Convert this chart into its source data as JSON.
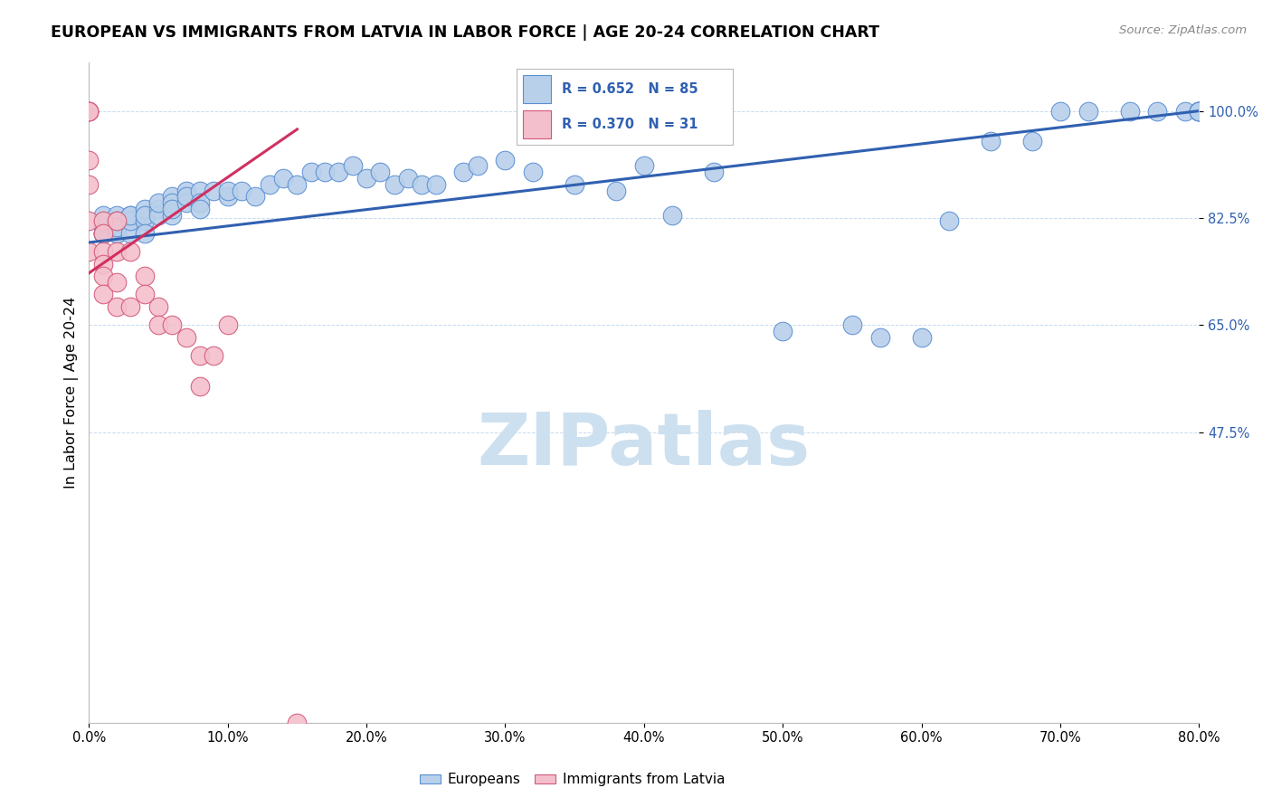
{
  "title": "EUROPEAN VS IMMIGRANTS FROM LATVIA IN LABOR FORCE | AGE 20-24 CORRELATION CHART",
  "source": "Source: ZipAtlas.com",
  "ylabel": "In Labor Force | Age 20-24",
  "xmin": 0.0,
  "xmax": 0.8,
  "ymin": 0.0,
  "ymax": 1.08,
  "yticks": [
    0.475,
    0.65,
    0.825,
    1.0
  ],
  "ytick_labels": [
    "47.5%",
    "65.0%",
    "82.5%",
    "100.0%"
  ],
  "xtick_labels": [
    "0.0%",
    "10.0%",
    "20.0%",
    "30.0%",
    "40.0%",
    "50.0%",
    "60.0%",
    "70.0%",
    "80.0%"
  ],
  "xticks": [
    0.0,
    0.1,
    0.2,
    0.3,
    0.4,
    0.5,
    0.6,
    0.7,
    0.8
  ],
  "legend_r_blue": "R = 0.652",
  "legend_n_blue": "N = 85",
  "legend_r_pink": "R = 0.370",
  "legend_n_pink": "N = 31",
  "blue_color": "#b8d0ea",
  "blue_edge_color": "#5b8fd4",
  "pink_color": "#f4bfcc",
  "pink_edge_color": "#d45878",
  "blue_line_color": "#3060b0",
  "pink_line_color": "#d03060",
  "watermark_color": "#cde0f0",
  "blue_x": [
    0.01,
    0.01,
    0.01,
    0.01,
    0.01,
    0.01,
    0.01,
    0.02,
    0.02,
    0.02,
    0.02,
    0.02,
    0.02,
    0.02,
    0.02,
    0.02,
    0.02,
    0.02,
    0.03,
    0.03,
    0.03,
    0.03,
    0.03,
    0.04,
    0.04,
    0.04,
    0.04,
    0.04,
    0.05,
    0.05,
    0.05,
    0.06,
    0.06,
    0.06,
    0.06,
    0.07,
    0.07,
    0.07,
    0.08,
    0.08,
    0.08,
    0.09,
    0.1,
    0.1,
    0.11,
    0.12,
    0.13,
    0.14,
    0.15,
    0.16,
    0.17,
    0.18,
    0.19,
    0.2,
    0.21,
    0.22,
    0.23,
    0.24,
    0.25,
    0.27,
    0.28,
    0.3,
    0.32,
    0.35,
    0.38,
    0.4,
    0.42,
    0.45,
    0.5,
    0.55,
    0.57,
    0.6,
    0.62,
    0.65,
    0.68,
    0.7,
    0.72,
    0.75,
    0.77,
    0.79,
    0.8,
    0.8,
    0.8,
    0.8,
    0.8
  ],
  "blue_y": [
    0.8,
    0.81,
    0.82,
    0.8,
    0.82,
    0.83,
    0.8,
    0.81,
    0.82,
    0.8,
    0.82,
    0.81,
    0.82,
    0.81,
    0.8,
    0.83,
    0.82,
    0.81,
    0.82,
    0.83,
    0.8,
    0.82,
    0.83,
    0.83,
    0.82,
    0.84,
    0.83,
    0.8,
    0.84,
    0.83,
    0.85,
    0.86,
    0.83,
    0.85,
    0.84,
    0.87,
    0.85,
    0.86,
    0.87,
    0.85,
    0.84,
    0.87,
    0.86,
    0.87,
    0.87,
    0.86,
    0.88,
    0.89,
    0.88,
    0.9,
    0.9,
    0.9,
    0.91,
    0.89,
    0.9,
    0.88,
    0.89,
    0.88,
    0.88,
    0.9,
    0.91,
    0.92,
    0.9,
    0.88,
    0.87,
    0.91,
    0.83,
    0.9,
    0.64,
    0.65,
    0.63,
    0.63,
    0.82,
    0.95,
    0.95,
    1.0,
    1.0,
    1.0,
    1.0,
    1.0,
    1.0,
    1.0,
    1.0,
    1.0,
    1.0
  ],
  "pink_x": [
    0.0,
    0.0,
    0.0,
    0.0,
    0.0,
    0.0,
    0.0,
    0.0,
    0.01,
    0.01,
    0.01,
    0.01,
    0.01,
    0.01,
    0.02,
    0.02,
    0.02,
    0.02,
    0.03,
    0.03,
    0.04,
    0.04,
    0.05,
    0.05,
    0.06,
    0.07,
    0.08,
    0.08,
    0.09,
    0.1,
    0.15
  ],
  "pink_y": [
    1.0,
    1.0,
    1.0,
    1.0,
    0.92,
    0.88,
    0.82,
    0.77,
    0.82,
    0.8,
    0.77,
    0.75,
    0.73,
    0.7,
    0.82,
    0.77,
    0.72,
    0.68,
    0.77,
    0.68,
    0.73,
    0.7,
    0.68,
    0.65,
    0.65,
    0.63,
    0.6,
    0.55,
    0.6,
    0.65,
    0.0
  ],
  "blue_trendline_x": [
    0.0,
    0.8
  ],
  "blue_trendline_y": [
    0.785,
    1.0
  ],
  "pink_trendline_x": [
    0.0,
    0.15
  ],
  "pink_trendline_y": [
    0.735,
    0.97
  ]
}
